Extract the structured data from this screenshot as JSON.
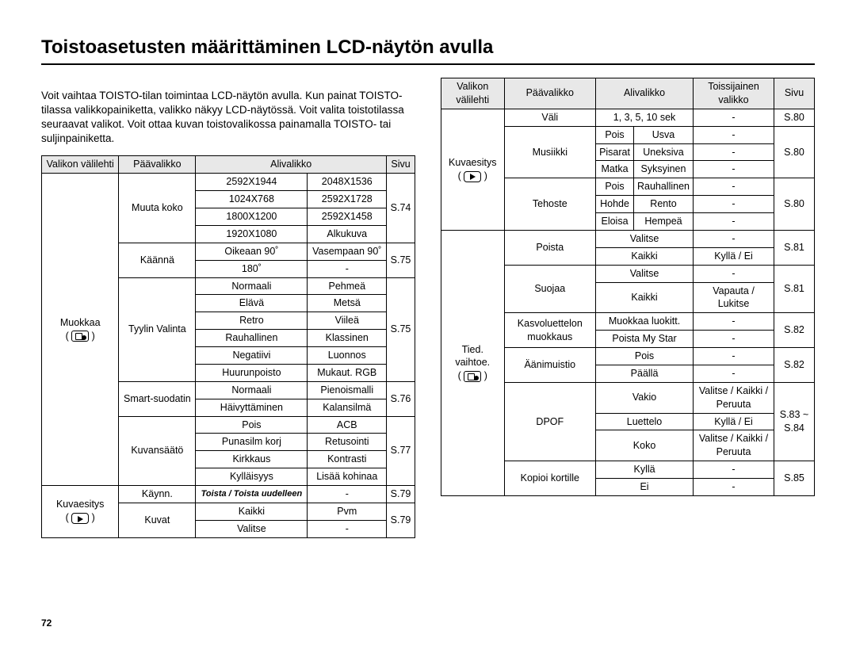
{
  "title": "Toistoasetusten määrittäminen LCD-näytön avulla",
  "intro": "Voit vaihtaa TOISTO-tilan toimintaa LCD-näytön avulla. Kun painat TOISTO-tilassa valikkopainiketta, valikko näkyy LCD-näytössä. Voit valita toistotilassa seuraavat valikot. Voit ottaa kuvan toistovalikossa painamalla TOISTO- tai suljinpainiketta.",
  "page_number": "72",
  "headers": {
    "tab": "Valikon välilehti",
    "main": "Päävalikko",
    "sub": "Alivalikko",
    "secondary": "Toissijainen valikko",
    "page": "Sivu"
  },
  "left": {
    "muokkaa": "Muokkaa",
    "kuvaesitys": "Kuvaesitys",
    "muuta_koko": "Muuta koko",
    "kaanna": "Käännä",
    "tyylin": "Tyylin Valinta",
    "smart": "Smart-suodatin",
    "kuvansaato": "Kuvansäätö",
    "kaynn": "Käynn.",
    "kuvat": "Kuvat",
    "res1a": "2592X1944",
    "res1b": "2048X1536",
    "res2a": "1024X768",
    "res2b": "2592X1728",
    "res3a": "1800X1200",
    "res3b": "2592X1458",
    "res4a": "1920X1080",
    "res4b": "Alkukuva",
    "rot1a": "Oikeaan 90˚",
    "rot1b": "Vasempaan 90˚",
    "rot2a": "180˚",
    "rot2b": "-",
    "st1a": "Normaali",
    "st1b": "Pehmeä",
    "st2a": "Elävä",
    "st2b": "Metsä",
    "st3a": "Retro",
    "st3b": "Viileä",
    "st4a": "Rauhallinen",
    "st4b": "Klassinen",
    "st5a": "Negatiivi",
    "st5b": "Luonnos",
    "st6a": "Huurunpoisto",
    "st6b": "Mukaut. RGB",
    "sm1a": "Normaali",
    "sm1b": "Pienoismalli",
    "sm2a": "Häivyttäminen",
    "sm2b": "Kalansilmä",
    "ks1a": "Pois",
    "ks1b": "ACB",
    "ks2a": "Punasilm korj",
    "ks2b": "Retusointi",
    "ks3a": "Kirkkaus",
    "ks3b": "Kontrasti",
    "ks4a": "Kylläisyys",
    "ks4b": "Lisää kohinaa",
    "toista": "Toista / Toista uudelleen",
    "toista_b": "-",
    "kv1a": "Kaikki",
    "kv1b": "Pvm",
    "kv2a": "Valitse",
    "kv2b": "-",
    "p74": "S.74",
    "p75": "S.75",
    "p75b": "S.75",
    "p76": "S.76",
    "p77": "S.77",
    "p79a": "S.79",
    "p79b": "S.79"
  },
  "right": {
    "kuvaesitys": "Kuvaesitys",
    "tied": "Tied. vaihtoe.",
    "vali": "Väli",
    "musiikki": "Musiikki",
    "tehoste": "Tehoste",
    "poista": "Poista",
    "suojaa": "Suojaa",
    "kasvo": "Kasvoluettelon muokkaus",
    "aani": "Äänimuistio",
    "dpof": "DPOF",
    "kopioi": "Kopioi kortille",
    "vali_sub": "1, 3, 5, 10 sek",
    "vali_sec": "-",
    "m1a": "Pois",
    "m1b": "Usva",
    "m1c": "-",
    "m2a": "Pisarat",
    "m2b": "Uneksiva",
    "m2c": "-",
    "m3a": "Matka",
    "m3b": "Syksyinen",
    "m3c": "-",
    "t1a": "Pois",
    "t1b": "Rauhallinen",
    "t1c": "-",
    "t2a": "Hohde",
    "t2b": "Rento",
    "t2c": "-",
    "t3a": "Eloisa",
    "t3b": "Hempeä",
    "t3c": "-",
    "po1a": "Valitse",
    "po1b": "-",
    "po2a": "Kaikki",
    "po2b": "Kyllä / Ei",
    "su1a": "Valitse",
    "su1b": "-",
    "su2a": "Kaikki",
    "su2b": "Vapauta / Lukitse",
    "ka1a": "Muokkaa luokitt.",
    "ka1b": "-",
    "ka2a": "Poista My Star",
    "ka2b": "-",
    "aa1a": "Pois",
    "aa1b": "-",
    "aa2a": "Päällä",
    "aa2b": "-",
    "dp1a": "Vakio",
    "dp1b": "Valitse / Kaikki / Peruuta",
    "dp2a": "Luettelo",
    "dp2b": "Kyllä / Ei",
    "dp3a": "Koko",
    "dp3b": "Valitse / Kaikki / Peruuta",
    "ko1a": "Kyllä",
    "ko1b": "-",
    "ko2a": "Ei",
    "ko2b": "-",
    "p80a": "S.80",
    "p80b": "S.80",
    "p80c": "S.80",
    "p81a": "S.81",
    "p81b": "S.81",
    "p82a": "S.82",
    "p82b": "S.82",
    "p83": "S.83 ~ S.84",
    "p85": "S.85"
  }
}
